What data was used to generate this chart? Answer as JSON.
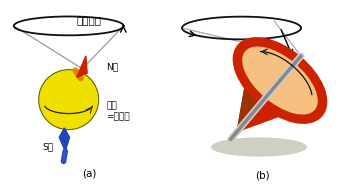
{
  "fig_width": 3.5,
  "fig_height": 1.89,
  "dpi": 100,
  "bg_color": "#ffffff",
  "label_a": "(a)",
  "label_b": "(b)",
  "title_a": "歳差運動",
  "label_N": "N極",
  "label_S": "S極",
  "label_spin": "自転\n=スピン",
  "ball_color": "#f0e000",
  "N_color": "#cc2200",
  "S_color": "#2244bb",
  "top_disk_fill": "#f5c080",
  "top_body_color": "#cc2200",
  "top_dark_color": "#993300"
}
